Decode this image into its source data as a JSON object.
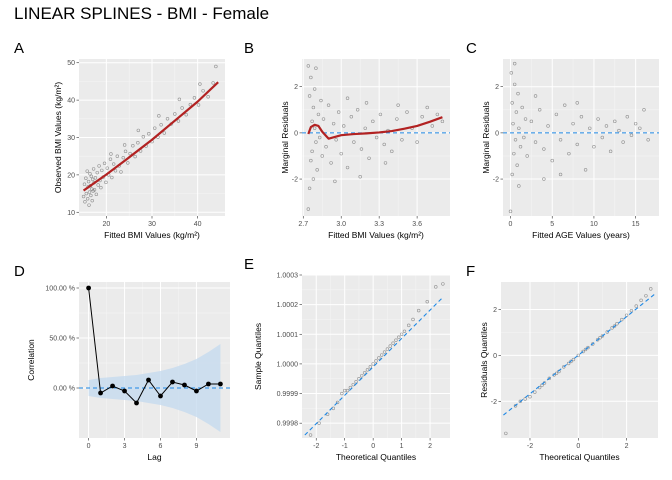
{
  "title": "LINEAR SPLINES - BMI - Female",
  "colors": {
    "panel_bg": "#ebebeb",
    "grid_major": "#ffffff",
    "points": "#555555",
    "fit_line": "#b22222",
    "reference_line": "#1e88e5",
    "ci_band": "#c6dbef",
    "acf_line": "#000000"
  },
  "chart_data": [
    {
      "tag": "A",
      "type": "scatter",
      "xlabel": "Fitted BMI Values (kg/m²)",
      "ylabel": "Observed BMI Values (kg/m²)",
      "xlim": [
        14,
        46
      ],
      "ylim": [
        9,
        51
      ],
      "x_ticks": [
        20,
        30,
        40
      ],
      "x_tick_labels": [
        "20",
        "30",
        "40"
      ],
      "y_ticks": [
        10,
        20,
        30,
        40,
        50
      ],
      "y_tick_labels": [
        "10",
        "20",
        "30",
        "40",
        "50"
      ],
      "reference_line": null,
      "fit_line": {
        "x": [
          15,
          20,
          25,
          30,
          35,
          40,
          44.5
        ],
        "y": [
          15.8,
          20.1,
          24.7,
          29.4,
          34.5,
          39.6,
          44.8
        ]
      },
      "points": [
        [
          15.0,
          14.2
        ],
        [
          15.2,
          17.5
        ],
        [
          15.3,
          12.8
        ],
        [
          15.5,
          19.1
        ],
        [
          15.6,
          15.0
        ],
        [
          15.8,
          21.0
        ],
        [
          15.9,
          13.6
        ],
        [
          16.0,
          16.8
        ],
        [
          16.1,
          18.2
        ],
        [
          16.2,
          11.9
        ],
        [
          16.3,
          15.4
        ],
        [
          16.4,
          20.3
        ],
        [
          16.5,
          17.1
        ],
        [
          16.6,
          14.5
        ],
        [
          16.7,
          19.6
        ],
        [
          16.8,
          16.2
        ],
        [
          16.9,
          13.1
        ],
        [
          17.0,
          18.8
        ],
        [
          17.1,
          15.7
        ],
        [
          17.2,
          21.6
        ],
        [
          17.3,
          17.9
        ],
        [
          17.4,
          16.0
        ],
        [
          17.6,
          19.2
        ],
        [
          17.8,
          14.8
        ],
        [
          18.0,
          20.6
        ],
        [
          18.2,
          17.3
        ],
        [
          18.4,
          22.4
        ],
        [
          18.6,
          18.5
        ],
        [
          18.8,
          16.6
        ],
        [
          19.0,
          21.2
        ],
        [
          19.3,
          19.4
        ],
        [
          19.6,
          23.1
        ],
        [
          19.9,
          18.0
        ],
        [
          20.2,
          21.8
        ],
        [
          20.5,
          20.0
        ],
        [
          20.9,
          24.2
        ],
        [
          21.2,
          19.3
        ],
        [
          21.6,
          22.9
        ],
        [
          22.0,
          21.1
        ],
        [
          22.4,
          25.0
        ],
        [
          22.8,
          22.4
        ],
        [
          23.2,
          20.8
        ],
        [
          23.7,
          24.6
        ],
        [
          24.2,
          26.3
        ],
        [
          24.7,
          23.2
        ],
        [
          25.2,
          25.7
        ],
        [
          25.8,
          27.8
        ],
        [
          26.3,
          24.9
        ],
        [
          26.9,
          28.6
        ],
        [
          27.5,
          26.4
        ],
        [
          28.1,
          30.2
        ],
        [
          28.7,
          27.7
        ],
        [
          29.3,
          31.0
        ],
        [
          30.0,
          28.9
        ],
        [
          30.6,
          32.5
        ],
        [
          31.3,
          30.1
        ],
        [
          32.0,
          33.4
        ],
        [
          32.7,
          31.2
        ],
        [
          33.4,
          35.0
        ],
        [
          34.2,
          33.6
        ],
        [
          35.0,
          36.3
        ],
        [
          35.8,
          34.4
        ],
        [
          36.6,
          37.9
        ],
        [
          37.5,
          36.1
        ],
        [
          38.4,
          38.8
        ],
        [
          39.3,
          40.6
        ],
        [
          40.2,
          38.7
        ],
        [
          41.2,
          42.5
        ],
        [
          42.3,
          40.9
        ],
        [
          43.4,
          44.6
        ],
        [
          44.0,
          49.0
        ],
        [
          40.5,
          44.3
        ],
        [
          36.0,
          40.2
        ],
        [
          31.5,
          35.8
        ],
        [
          27.0,
          31.9
        ],
        [
          24.0,
          28.0
        ],
        [
          21.0,
          25.6
        ]
      ]
    },
    {
      "tag": "B",
      "type": "scatter",
      "xlabel": "Fitted BMI Values (kg/m²)",
      "ylabel": "Marginal Residuals",
      "xlim": [
        2.69,
        3.86
      ],
      "ylim": [
        -3.6,
        3.2
      ],
      "x_ticks": [
        2.7,
        3.0,
        3.3,
        3.6
      ],
      "x_tick_labels": [
        "2.7",
        "3.0",
        "3.3",
        "3.6"
      ],
      "y_ticks": [
        -2,
        0,
        2
      ],
      "y_tick_labels": [
        "-2",
        "0",
        "2"
      ],
      "reference_line": {
        "orientation": "horizontal",
        "value": 0
      },
      "fit_line": {
        "x": [
          2.74,
          2.76,
          2.79,
          2.82,
          2.85,
          2.9,
          3.0,
          3.1,
          3.2,
          3.3,
          3.4,
          3.5,
          3.6,
          3.7,
          3.8
        ],
        "y": [
          -0.05,
          0.25,
          0.35,
          0.3,
          0.05,
          -0.25,
          -0.1,
          -0.05,
          -0.02,
          0.02,
          0.08,
          0.18,
          0.3,
          0.48,
          0.68
        ]
      },
      "points": [
        [
          2.74,
          -3.3
        ],
        [
          2.74,
          2.9
        ],
        [
          2.75,
          -2.4
        ],
        [
          2.75,
          1.6
        ],
        [
          2.76,
          -1.2
        ],
        [
          2.76,
          2.4
        ],
        [
          2.77,
          0.5
        ],
        [
          2.77,
          -0.8
        ],
        [
          2.78,
          1.1
        ],
        [
          2.78,
          -2.0
        ],
        [
          2.79,
          0.2
        ],
        [
          2.79,
          1.9
        ],
        [
          2.8,
          -0.4
        ],
        [
          2.8,
          2.8
        ],
        [
          2.81,
          -1.6
        ],
        [
          2.82,
          0.8
        ],
        [
          2.83,
          -0.2
        ],
        [
          2.84,
          1.4
        ],
        [
          2.85,
          -1.0
        ],
        [
          2.86,
          0.6
        ],
        [
          2.88,
          -0.6
        ],
        [
          2.9,
          1.2
        ],
        [
          2.92,
          -1.3
        ],
        [
          2.94,
          0.4
        ],
        [
          2.96,
          -0.3
        ],
        [
          2.98,
          0.9
        ],
        [
          3.0,
          -0.9
        ],
        [
          3.02,
          0.3
        ],
        [
          3.05,
          -1.5
        ],
        [
          3.08,
          0.7
        ],
        [
          3.1,
          -0.4
        ],
        [
          3.13,
          1.0
        ],
        [
          3.16,
          -0.7
        ],
        [
          3.19,
          0.2
        ],
        [
          3.22,
          -1.1
        ],
        [
          3.25,
          0.5
        ],
        [
          3.28,
          -0.2
        ],
        [
          3.31,
          0.8
        ],
        [
          3.34,
          -0.5
        ],
        [
          3.37,
          0.1
        ],
        [
          3.4,
          -0.8
        ],
        [
          3.44,
          0.6
        ],
        [
          3.48,
          -0.3
        ],
        [
          3.52,
          0.9
        ],
        [
          3.56,
          0.2
        ],
        [
          3.6,
          -0.4
        ],
        [
          3.64,
          0.7
        ],
        [
          3.68,
          1.1
        ],
        [
          3.72,
          0.3
        ],
        [
          3.76,
          0.8
        ],
        [
          3.8,
          0.5
        ],
        [
          3.05,
          1.5
        ],
        [
          3.2,
          1.3
        ],
        [
          3.35,
          -1.3
        ],
        [
          3.45,
          1.2
        ],
        [
          3.15,
          -1.9
        ],
        [
          2.95,
          -2.1
        ]
      ]
    },
    {
      "tag": "C",
      "type": "scatter",
      "xlabel": "Fitted AGE Values (years)",
      "ylabel": "Marginal Residuals",
      "xlim": [
        -0.9,
        17.8
      ],
      "ylim": [
        -3.6,
        3.2
      ],
      "x_ticks": [
        0,
        5,
        10,
        15
      ],
      "x_tick_labels": [
        "0",
        "5",
        "10",
        "15"
      ],
      "y_ticks": [
        -2,
        0,
        2
      ],
      "y_tick_labels": [
        "-2",
        "0",
        "2"
      ],
      "reference_line": {
        "orientation": "horizontal",
        "value": 0
      },
      "fit_line": null,
      "points": [
        [
          0.0,
          -3.4
        ],
        [
          0.1,
          2.6
        ],
        [
          0.2,
          -1.8
        ],
        [
          0.2,
          1.3
        ],
        [
          0.3,
          0.4
        ],
        [
          0.4,
          -0.9
        ],
        [
          0.5,
          2.1
        ],
        [
          0.6,
          -0.3
        ],
        [
          0.7,
          0.9
        ],
        [
          0.8,
          -1.4
        ],
        [
          0.9,
          1.7
        ],
        [
          1.0,
          0.2
        ],
        [
          1.2,
          -0.6
        ],
        [
          1.4,
          1.1
        ],
        [
          1.6,
          -0.2
        ],
        [
          1.8,
          0.6
        ],
        [
          2.0,
          -1.0
        ],
        [
          2.5,
          0.5
        ],
        [
          3.0,
          -0.4
        ],
        [
          3.5,
          1.0
        ],
        [
          4.0,
          -0.7
        ],
        [
          4.5,
          0.3
        ],
        [
          5.0,
          -1.2
        ],
        [
          5.5,
          0.8
        ],
        [
          6.0,
          -0.3
        ],
        [
          6.5,
          1.2
        ],
        [
          7.0,
          -0.9
        ],
        [
          7.5,
          0.4
        ],
        [
          8.0,
          -0.5
        ],
        [
          8.5,
          0.7
        ],
        [
          9.0,
          -1.6
        ],
        [
          9.5,
          0.2
        ],
        [
          10.0,
          -0.6
        ],
        [
          10.5,
          0.6
        ],
        [
          11.0,
          -0.2
        ],
        [
          11.5,
          0.3
        ],
        [
          12.0,
          -0.8
        ],
        [
          12.5,
          0.5
        ],
        [
          13.0,
          0.1
        ],
        [
          13.5,
          -0.4
        ],
        [
          14.0,
          0.7
        ],
        [
          14.5,
          -0.1
        ],
        [
          15.0,
          0.4
        ],
        [
          15.5,
          0.2
        ],
        [
          16.0,
          1.0
        ],
        [
          16.5,
          -0.3
        ],
        [
          3.0,
          1.6
        ],
        [
          6.0,
          -1.8
        ],
        [
          8.0,
          1.3
        ],
        [
          4.0,
          -2.0
        ],
        [
          1.0,
          -2.3
        ],
        [
          0.5,
          3.0
        ]
      ]
    },
    {
      "tag": "D",
      "type": "line",
      "xlabel": "Lag",
      "ylabel": "Correlation",
      "xlim": [
        -0.8,
        11.8
      ],
      "ylim": [
        -0.5,
        1.06
      ],
      "x_ticks": [
        0,
        3,
        6,
        9
      ],
      "x_tick_labels": [
        "0",
        "3",
        "6",
        "9"
      ],
      "y_ticks": [
        0,
        0.5,
        1.0
      ],
      "y_tick_labels": [
        "0.00 %",
        "50.00 %",
        "100.00 %"
      ],
      "reference_line": {
        "orientation": "horizontal",
        "value": 0
      },
      "band": {
        "x": [
          0,
          1,
          2,
          3,
          4,
          5,
          6,
          7,
          8,
          9,
          10,
          11
        ],
        "lower": [
          -0.08,
          -0.1,
          -0.11,
          -0.12,
          -0.13,
          -0.15,
          -0.17,
          -0.2,
          -0.24,
          -0.29,
          -0.36,
          -0.44
        ],
        "upper": [
          0.08,
          0.1,
          0.11,
          0.12,
          0.13,
          0.15,
          0.17,
          0.2,
          0.24,
          0.29,
          0.36,
          0.44
        ]
      },
      "x": [
        0,
        1,
        2,
        3,
        4,
        5,
        6,
        7,
        8,
        9,
        10,
        11
      ],
      "y": [
        1.0,
        -0.05,
        0.02,
        -0.03,
        -0.15,
        0.08,
        -0.08,
        0.06,
        0.03,
        -0.03,
        0.04,
        0.04
      ]
    },
    {
      "tag": "E",
      "type": "scatter",
      "xlabel": "Theoretical Quantiles",
      "ylabel": "Sample Quantiles",
      "xlim": [
        -2.5,
        2.7
      ],
      "ylim": [
        0.99975,
        1.0003
      ],
      "x_ticks": [
        -2,
        -1,
        0,
        1,
        2
      ],
      "x_tick_labels": [
        "-2",
        "-1",
        "0",
        "1",
        "2"
      ],
      "y_ticks": [
        0.9998,
        0.9999,
        1.0,
        1.0001,
        1.0002,
        1.0003
      ],
      "y_tick_labels": [
        "0.9998",
        "0.9999",
        "1.0000",
        "1.0001",
        "1.0002",
        "1.0003"
      ],
      "reference_line": {
        "orientation": "diagonal",
        "x": [
          -2.4,
          2.4
        ],
        "y": [
          0.99976,
          1.00022
        ]
      },
      "fit_line": null,
      "points": [
        [
          -2.2,
          0.99976
        ],
        [
          -1.9,
          0.9998
        ],
        [
          -1.6,
          0.99983
        ],
        [
          -1.4,
          0.99985
        ],
        [
          -1.25,
          0.99987
        ],
        [
          -1.1,
          0.9999
        ],
        [
          -1.0,
          0.99991
        ],
        [
          -0.9,
          0.99991
        ],
        [
          -0.8,
          0.99992
        ],
        [
          -0.7,
          0.99993
        ],
        [
          -0.6,
          0.99994
        ],
        [
          -0.5,
          0.99995
        ],
        [
          -0.4,
          0.99996
        ],
        [
          -0.3,
          0.99997
        ],
        [
          -0.2,
          0.99998
        ],
        [
          -0.1,
          0.99999
        ],
        [
          0.0,
          1.0
        ],
        [
          0.1,
          1.00001
        ],
        [
          0.2,
          1.00002
        ],
        [
          0.3,
          1.00003
        ],
        [
          0.4,
          1.00004
        ],
        [
          0.5,
          1.00005
        ],
        [
          0.6,
          1.00006
        ],
        [
          0.7,
          1.00007
        ],
        [
          0.8,
          1.00008
        ],
        [
          0.9,
          1.00009
        ],
        [
          1.0,
          1.0001
        ],
        [
          1.1,
          1.00011
        ],
        [
          1.25,
          1.00013
        ],
        [
          1.4,
          1.00015
        ],
        [
          1.6,
          1.00018
        ],
        [
          1.9,
          1.00021
        ],
        [
          2.2,
          1.00026
        ],
        [
          2.45,
          1.00027
        ]
      ]
    },
    {
      "tag": "F",
      "type": "scatter",
      "xlabel": "Theoretical Quantiles",
      "ylabel": "Residuals Quantiles",
      "xlim": [
        -3.2,
        3.3
      ],
      "ylim": [
        -3.6,
        3.2
      ],
      "x_ticks": [
        -2,
        0,
        2
      ],
      "x_tick_labels": [
        "-2",
        "0",
        "2"
      ],
      "y_ticks": [
        -2,
        0,
        2
      ],
      "y_tick_labels": [
        "-2",
        "0",
        "2"
      ],
      "reference_line": {
        "orientation": "diagonal",
        "x": [
          -3.1,
          3.2
        ],
        "y": [
          -2.6,
          2.7
        ]
      },
      "fit_line": null,
      "points": [
        [
          -3.0,
          -3.4
        ],
        [
          -2.6,
          -2.2
        ],
        [
          -2.4,
          -2.0
        ],
        [
          -2.2,
          -1.9
        ],
        [
          -2.0,
          -1.8
        ],
        [
          -1.8,
          -1.6
        ],
        [
          -1.6,
          -1.4
        ],
        [
          -1.4,
          -1.2
        ],
        [
          -1.2,
          -1.0
        ],
        [
          -1.0,
          -0.85
        ],
        [
          -0.8,
          -0.7
        ],
        [
          -0.6,
          -0.5
        ],
        [
          -0.4,
          -0.35
        ],
        [
          -0.2,
          -0.18
        ],
        [
          0.0,
          0.0
        ],
        [
          0.2,
          0.17
        ],
        [
          0.4,
          0.34
        ],
        [
          0.6,
          0.5
        ],
        [
          0.8,
          0.68
        ],
        [
          1.0,
          0.85
        ],
        [
          1.2,
          1.02
        ],
        [
          1.4,
          1.2
        ],
        [
          1.6,
          1.38
        ],
        [
          1.8,
          1.56
        ],
        [
          2.0,
          1.75
        ],
        [
          2.2,
          1.95
        ],
        [
          2.4,
          2.15
        ],
        [
          2.6,
          2.4
        ],
        [
          2.8,
          2.6
        ],
        [
          3.0,
          2.9
        ],
        [
          -1.5,
          -1.3
        ],
        [
          -0.9,
          -0.78
        ],
        [
          -0.3,
          -0.26
        ],
        [
          0.3,
          0.26
        ],
        [
          0.9,
          0.77
        ],
        [
          1.5,
          1.28
        ]
      ]
    }
  ]
}
